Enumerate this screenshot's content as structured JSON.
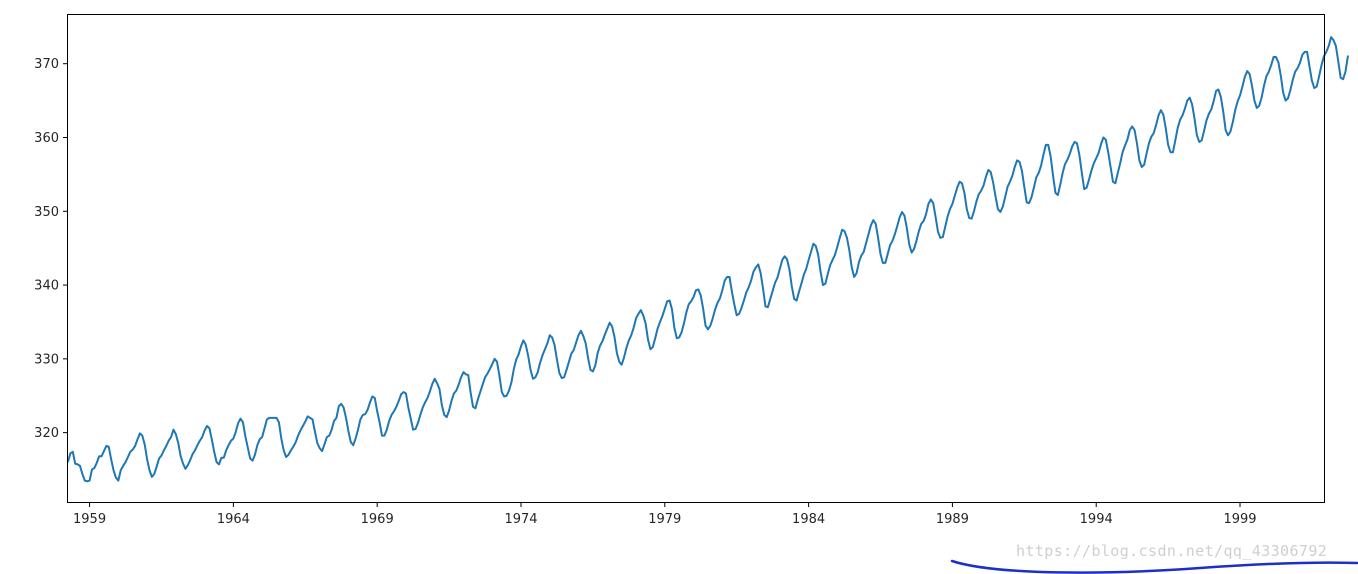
{
  "chart_data": {
    "type": "line",
    "title": "",
    "xlabel": "",
    "ylabel": "",
    "xlim": [
      1958.25,
      2001.92
    ],
    "ylim": [
      310.6,
      376.6
    ],
    "x_ticks": [
      1959,
      1964,
      1969,
      1974,
      1979,
      1984,
      1989,
      1994,
      1999
    ],
    "x_tick_labels": [
      "1959",
      "1964",
      "1969",
      "1974",
      "1979",
      "1984",
      "1989",
      "1994",
      "1999"
    ],
    "y_ticks": [
      320,
      330,
      340,
      350,
      360,
      370
    ],
    "y_tick_labels": [
      "320",
      "330",
      "340",
      "350",
      "360",
      "370"
    ],
    "grid": false,
    "legend": "none",
    "series": [
      {
        "color": "#1f77b4",
        "x_start": 1958.25,
        "x_step": 0.0833333,
        "values": [
          316.1,
          317.2,
          317.4,
          315.8,
          315.7,
          315.5,
          314.4,
          313.5,
          313.4,
          313.5,
          315.0,
          315.2,
          315.9,
          316.8,
          316.8,
          317.5,
          318.2,
          318.1,
          316.4,
          314.9,
          313.9,
          313.5,
          314.9,
          315.5,
          316.0,
          316.7,
          317.4,
          317.7,
          318.2,
          319.1,
          319.9,
          319.6,
          318.4,
          316.4,
          314.9,
          314.0,
          314.4,
          315.4,
          316.5,
          316.9,
          317.6,
          318.2,
          318.9,
          319.4,
          320.4,
          319.8,
          318.6,
          316.8,
          315.8,
          315.1,
          315.6,
          316.3,
          317.1,
          317.6,
          318.3,
          318.9,
          319.4,
          320.3,
          320.9,
          320.6,
          319.1,
          317.4,
          316.0,
          315.7,
          316.6,
          316.6,
          317.6,
          318.3,
          318.9,
          319.2,
          320.1,
          321.3,
          321.9,
          321.4,
          319.5,
          318.0,
          316.5,
          316.2,
          317.0,
          318.3,
          319.1,
          319.4,
          320.6,
          321.8,
          322.0,
          322.0,
          322.0,
          322.0,
          321.4,
          319.2,
          317.6,
          316.7,
          317.0,
          317.6,
          318.1,
          318.7,
          319.6,
          320.3,
          320.9,
          321.5,
          322.2,
          322.0,
          321.8,
          320.2,
          318.6,
          317.9,
          317.5,
          318.4,
          319.4,
          319.6,
          320.4,
          321.6,
          322.0,
          323.6,
          323.9,
          323.4,
          322.0,
          320.2,
          318.7,
          318.3,
          319.2,
          320.4,
          321.8,
          322.4,
          322.5,
          323.1,
          324.1,
          324.9,
          324.7,
          322.9,
          321.4,
          319.6,
          319.6,
          320.4,
          321.6,
          322.4,
          322.9,
          323.5,
          324.3,
          325.2,
          325.5,
          325.3,
          323.4,
          321.9,
          320.4,
          320.5,
          321.3,
          322.4,
          323.4,
          324.1,
          324.7,
          325.6,
          326.6,
          327.3,
          326.7,
          325.9,
          323.7,
          322.4,
          322.1,
          323.0,
          324.3,
          325.3,
          325.7,
          326.5,
          327.5,
          328.2,
          327.9,
          327.8,
          325.4,
          323.5,
          323.3,
          324.5,
          325.5,
          326.5,
          327.5,
          328.0,
          328.6,
          329.3,
          330.0,
          329.6,
          327.7,
          325.5,
          324.9,
          325.0,
          325.7,
          326.8,
          328.6,
          329.9,
          330.6,
          331.7,
          332.5,
          331.9,
          330.4,
          328.5,
          327.3,
          327.5,
          328.2,
          329.5,
          330.5,
          331.3,
          332.1,
          333.2,
          332.9,
          331.9,
          329.9,
          328.1,
          327.4,
          327.5,
          328.5,
          329.6,
          330.7,
          331.2,
          332.2,
          333.2,
          333.8,
          333.1,
          332.1,
          330.1,
          328.5,
          328.3,
          329.1,
          330.8,
          331.8,
          332.4,
          333.3,
          334.1,
          334.9,
          334.4,
          333.0,
          330.8,
          329.6,
          329.2,
          330.2,
          331.5,
          332.5,
          333.2,
          334.2,
          335.5,
          336.1,
          336.6,
          335.9,
          334.8,
          332.6,
          331.3,
          331.6,
          332.8,
          334.1,
          335.0,
          335.8,
          336.8,
          337.8,
          337.9,
          336.7,
          334.2,
          332.8,
          332.9,
          333.6,
          334.8,
          336.3,
          337.4,
          337.8,
          338.4,
          339.3,
          339.4,
          338.6,
          336.8,
          334.5,
          334.0,
          334.5,
          335.5,
          336.7,
          337.6,
          338.2,
          339.3,
          340.6,
          341.1,
          341.1,
          339.1,
          337.4,
          335.9,
          336.1,
          336.9,
          337.9,
          339.0,
          339.7,
          340.6,
          341.8,
          342.4,
          342.8,
          341.6,
          339.5,
          337.1,
          337.0,
          338.1,
          339.2,
          340.3,
          341.0,
          342.2,
          343.4,
          343.9,
          343.5,
          342.1,
          339.8,
          338.1,
          337.9,
          339.1,
          340.2,
          341.4,
          342.2,
          343.4,
          344.5,
          345.6,
          345.3,
          344.1,
          341.8,
          340.0,
          340.2,
          341.5,
          342.7,
          343.4,
          344.1,
          345.2,
          346.4,
          347.5,
          347.3,
          346.4,
          344.7,
          342.4,
          341.1,
          341.6,
          343.1,
          344.0,
          344.5,
          345.7,
          346.9,
          348.1,
          348.8,
          348.3,
          346.4,
          344.2,
          343.0,
          343.0,
          344.2,
          345.4,
          346.0,
          346.9,
          348.0,
          349.2,
          349.9,
          349.4,
          347.7,
          345.5,
          344.4,
          344.9,
          346.0,
          347.3,
          348.3,
          348.7,
          349.6,
          351.0,
          351.6,
          351.1,
          349.2,
          347.2,
          346.4,
          346.5,
          347.9,
          349.3,
          350.3,
          351.0,
          352.1,
          353.2,
          354.0,
          353.8,
          352.5,
          350.3,
          349.1,
          349.0,
          350.0,
          351.3,
          352.3,
          352.8,
          353.5,
          354.7,
          355.6,
          355.3,
          353.9,
          352.0,
          350.3,
          349.9,
          350.6,
          351.9,
          353.3,
          354.0,
          354.8,
          356.0,
          356.9,
          356.7,
          355.5,
          353.3,
          351.2,
          351.1,
          351.9,
          353.2,
          354.6,
          355.2,
          356.2,
          357.7,
          359.0,
          359.0,
          357.4,
          354.8,
          352.5,
          352.2,
          353.6,
          355.2,
          356.4,
          357.0,
          357.8,
          358.8,
          359.4,
          359.2,
          357.6,
          355.2,
          353.0,
          353.2,
          354.3,
          355.5,
          356.5,
          357.2,
          357.9,
          359.1,
          360.0,
          359.7,
          358.0,
          356.0,
          354.0,
          353.8,
          355.2,
          356.5,
          358.0,
          358.9,
          359.7,
          361.0,
          361.5,
          361.0,
          359.2,
          356.9,
          356.0,
          356.3,
          357.8,
          359.2,
          360.1,
          360.6,
          361.7,
          363.0,
          363.7,
          363.1,
          361.3,
          359.0,
          358.0,
          358.0,
          359.6,
          361.3,
          362.4,
          363.0,
          363.9,
          365.0,
          365.4,
          364.5,
          362.6,
          360.3,
          359.4,
          359.6,
          360.9,
          362.3,
          363.2,
          363.8,
          364.9,
          366.3,
          366.5,
          365.5,
          363.5,
          361.0,
          360.3,
          360.8,
          362.1,
          363.7,
          364.9,
          365.7,
          366.9,
          368.2,
          369.0,
          368.6,
          367.0,
          365.0,
          364.0,
          364.3,
          365.4,
          367.0,
          368.3,
          368.9,
          369.8,
          370.9,
          370.9,
          370.2,
          368.4,
          366.1,
          365.0,
          365.3,
          366.4,
          367.8,
          368.9,
          369.4,
          370.1,
          371.2,
          371.6,
          371.6,
          369.6,
          367.7,
          366.7,
          366.9,
          368.3,
          369.8,
          371.0,
          371.6,
          372.4,
          373.6,
          373.2,
          372.4,
          370.3,
          368.1,
          367.9,
          368.9,
          371.0
        ]
      }
    ]
  },
  "watermark": {
    "text": "https://blog.csdn.net/qq_43306792",
    "underline_color": "#1c2fc8"
  }
}
